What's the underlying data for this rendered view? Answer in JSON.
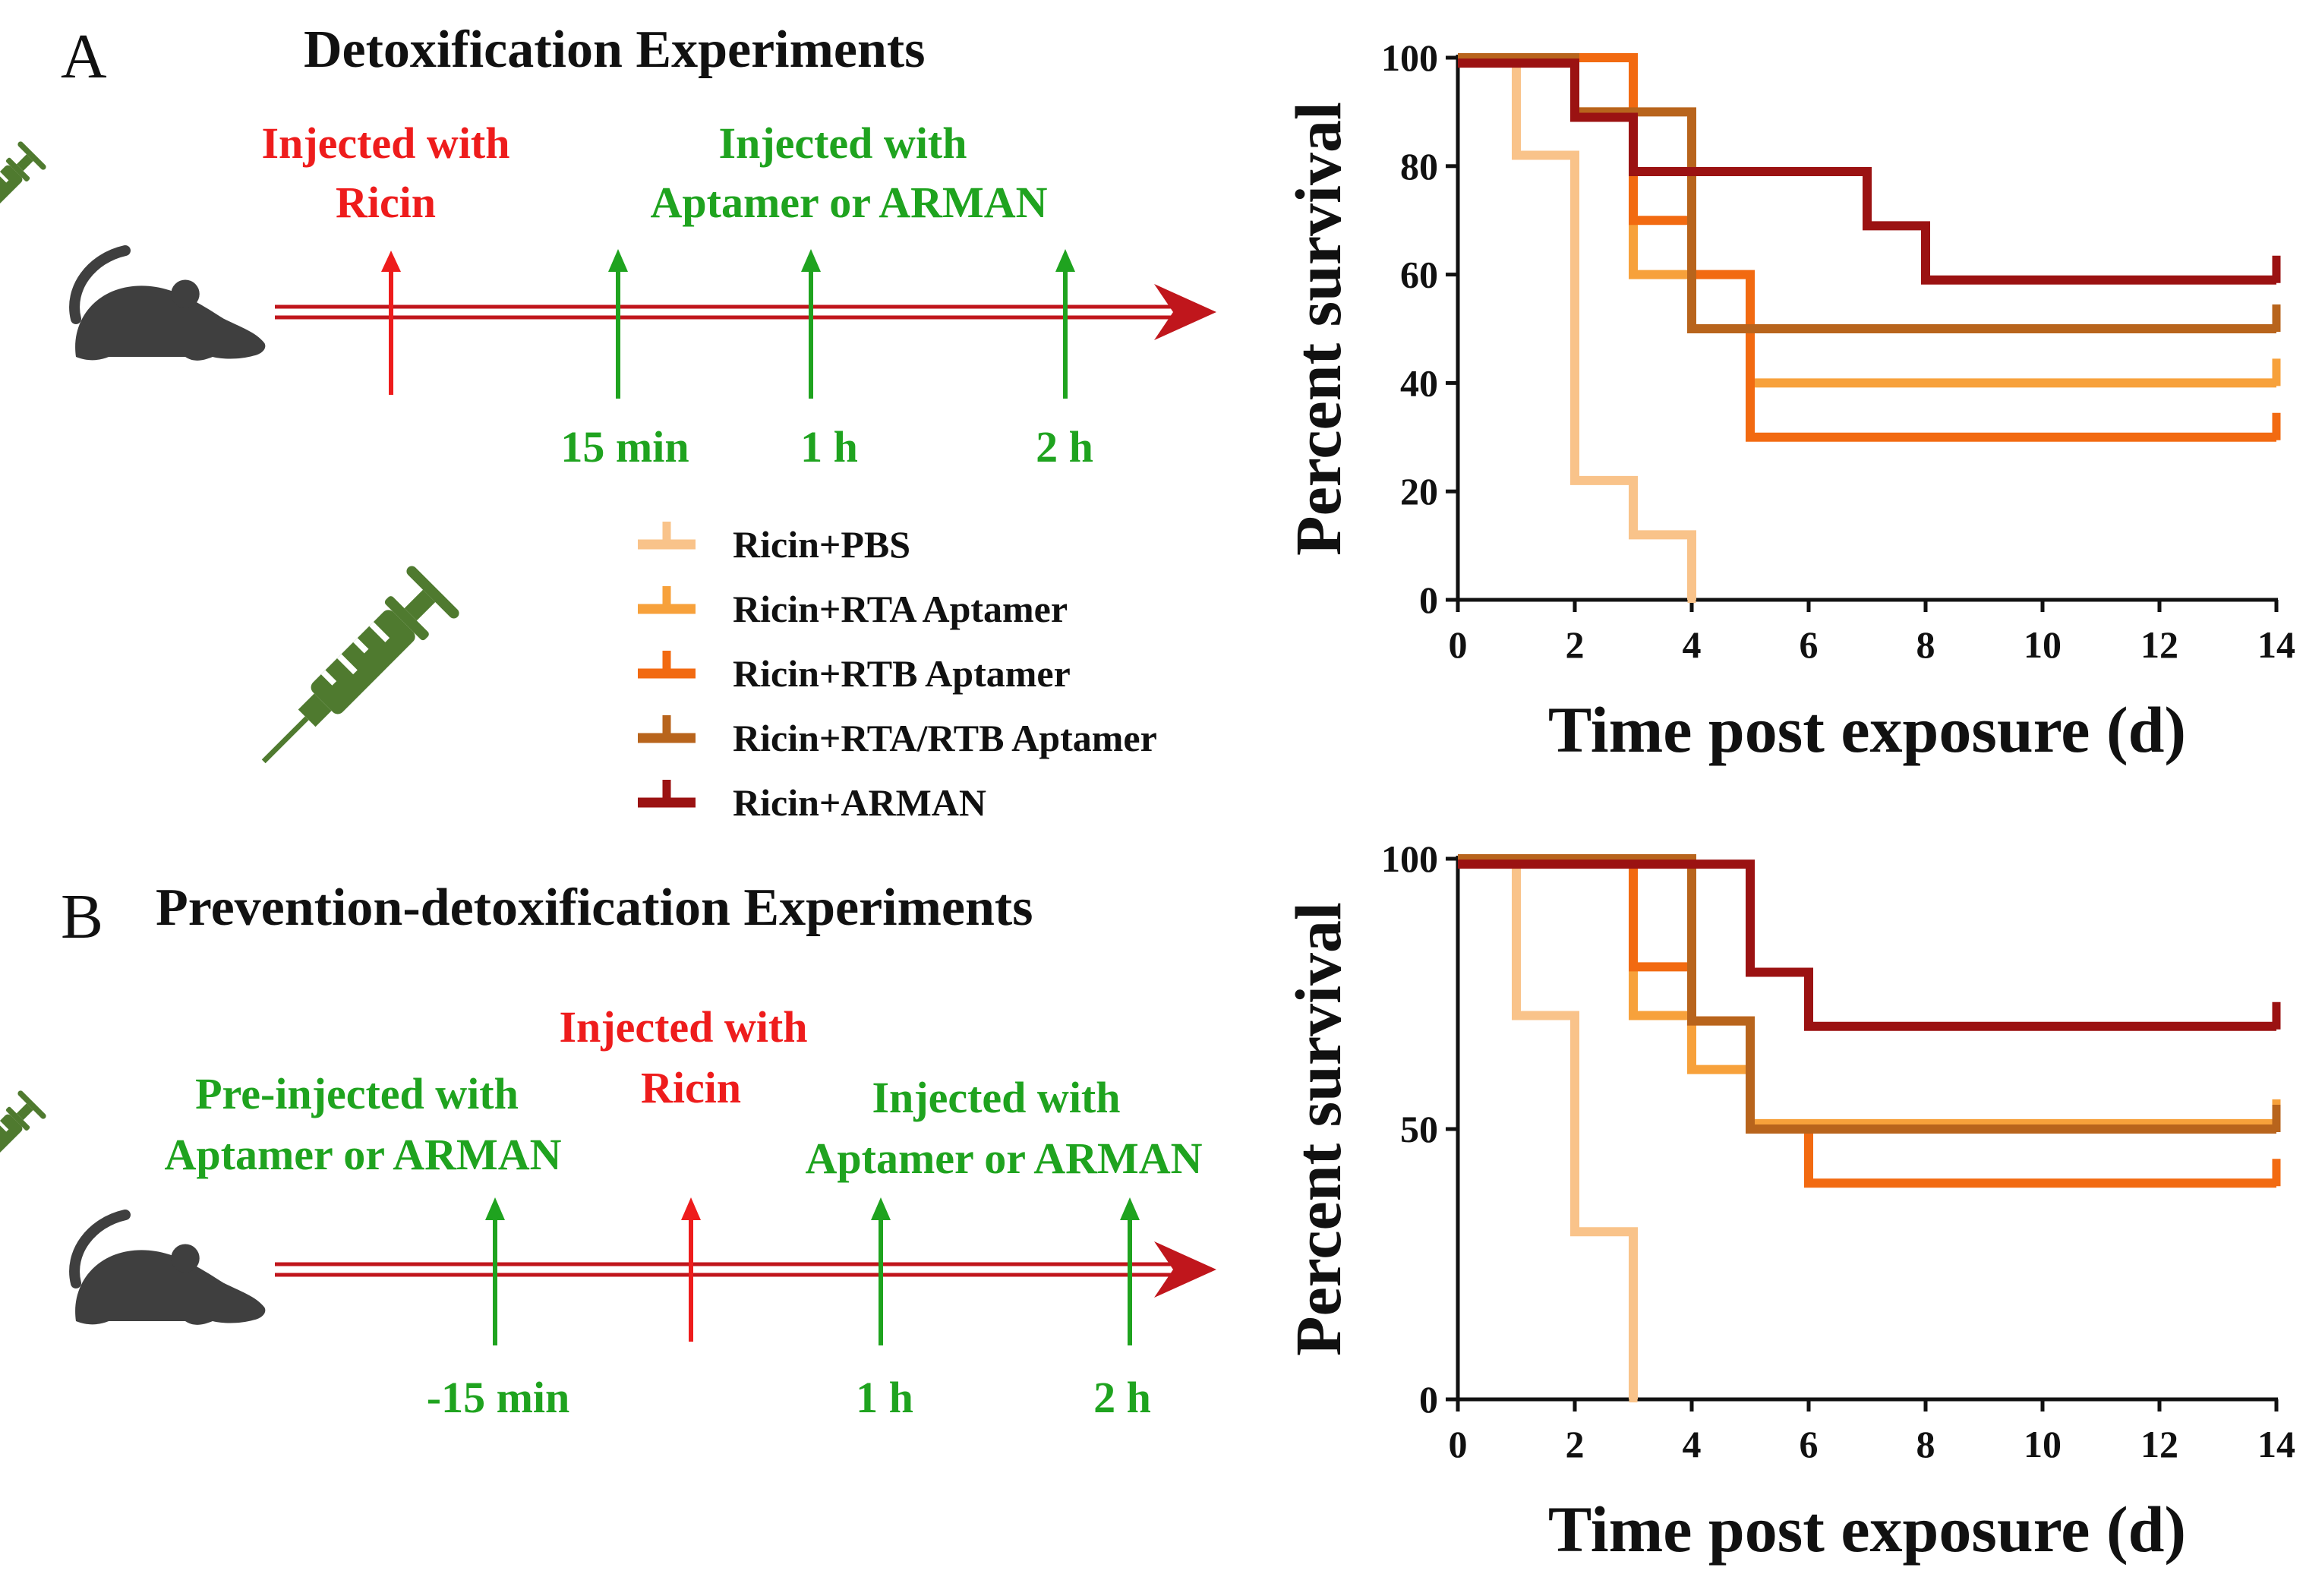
{
  "panels": {
    "a": {
      "letter": "A",
      "title": "Detoxification Experiments",
      "ricin_label": [
        "Injected with",
        "Ricin"
      ],
      "treatment_label": [
        "Injected with",
        "Aptamer or ARMAN"
      ],
      "times": [
        "15 min",
        "1 h",
        "2 h"
      ]
    },
    "b": {
      "letter": "B",
      "title": "Prevention-detoxification Experiments",
      "pre_label": [
        "Pre-injected with",
        "Aptamer or ARMAN"
      ],
      "ricin_label": [
        "Injected with",
        "Ricin"
      ],
      "treatment_label": [
        "Injected with",
        "Aptamer or ARMAN"
      ],
      "times": [
        "-15 min",
        "1 h",
        "2 h"
      ]
    }
  },
  "colors": {
    "ricin_red": "#ee1c1c",
    "injection_green": "#1fa31f",
    "timeline_red": "#c0161c",
    "syringe_green": "#4f7a2f",
    "mouse_gray": "#3f3f3f"
  },
  "legend": [
    {
      "label": "Ricin+PBS",
      "color": "#f9c38a"
    },
    {
      "label": "Ricin+RTA Aptamer",
      "color": "#f7a13b"
    },
    {
      "label": "Ricin+RTB Aptamer",
      "color": "#f26a11"
    },
    {
      "label": "Ricin+RTA/RTB Aptamer",
      "color": "#b8641c"
    },
    {
      "label": "Ricin+ARMAN",
      "color": "#9b1212"
    }
  ],
  "chart_data": [
    {
      "type": "line",
      "subtype": "kaplan-meier",
      "panel": "A",
      "xlabel": "Time post exposure (d)",
      "ylabel": "Percent survival",
      "xlim": [
        0,
        14
      ],
      "ylim": [
        0,
        100
      ],
      "xticks": [
        "0",
        "2",
        "4",
        "6",
        "8",
        "10",
        "12",
        "14"
      ],
      "yticks": [
        "0",
        "20",
        "40",
        "60",
        "80",
        "100"
      ],
      "series": [
        {
          "name": "Ricin+PBS",
          "color": "#f9c38a",
          "steps": [
            [
              0,
              100
            ],
            [
              1,
              82
            ],
            [
              2,
              22
            ],
            [
              3,
              12
            ],
            [
              4,
              0
            ]
          ],
          "end": 4
        },
        {
          "name": "Ricin+RTA Aptamer",
          "color": "#f7a13b",
          "steps": [
            [
              0,
              100
            ],
            [
              2,
              90
            ],
            [
              3,
              60
            ],
            [
              4,
              50
            ],
            [
              5,
              40
            ]
          ],
          "end": 14
        },
        {
          "name": "Ricin+RTB Aptamer",
          "color": "#f26a11",
          "steps": [
            [
              0,
              100
            ],
            [
              3,
              70
            ],
            [
              4,
              60
            ],
            [
              5,
              30
            ]
          ],
          "end": 14
        },
        {
          "name": "Ricin+RTA/RTB Aptamer",
          "color": "#b8641c",
          "steps": [
            [
              0,
              100
            ],
            [
              2,
              90
            ],
            [
              4,
              50
            ]
          ],
          "end": 14
        },
        {
          "name": "Ricin+ARMAN",
          "color": "#9b1212",
          "steps": [
            [
              0,
              99
            ],
            [
              2,
              89
            ],
            [
              3,
              79
            ],
            [
              7,
              69
            ],
            [
              8,
              59
            ]
          ],
          "end": 14
        }
      ]
    },
    {
      "type": "line",
      "subtype": "kaplan-meier",
      "panel": "B",
      "xlabel": "Time post exposure (d)",
      "ylabel": "Percent survival",
      "xlim": [
        0,
        14
      ],
      "ylim": [
        0,
        100
      ],
      "xticks": [
        "0",
        "2",
        "4",
        "6",
        "8",
        "10",
        "12",
        "14"
      ],
      "yticks": [
        "0",
        "50",
        "100"
      ],
      "series": [
        {
          "name": "Ricin+PBS",
          "color": "#f9c38a",
          "steps": [
            [
              0,
              100
            ],
            [
              1,
              71
            ],
            [
              2,
              31
            ],
            [
              3,
              0
            ]
          ],
          "end": 3
        },
        {
          "name": "Ricin+RTA Aptamer",
          "color": "#f7a13b",
          "steps": [
            [
              0,
              100
            ],
            [
              3,
              71
            ],
            [
              4,
              61
            ],
            [
              5,
              51
            ]
          ],
          "end": 14
        },
        {
          "name": "Ricin+RTB Aptamer",
          "color": "#f26a11",
          "steps": [
            [
              0,
              100
            ],
            [
              3,
              80
            ],
            [
              4,
              70
            ],
            [
              5,
              50
            ],
            [
              6,
              40
            ]
          ],
          "end": 14
        },
        {
          "name": "Ricin+RTA/RTB Aptamer",
          "color": "#b8641c",
          "steps": [
            [
              0,
              100
            ],
            [
              4,
              70
            ],
            [
              5,
              50
            ]
          ],
          "end": 14
        },
        {
          "name": "Ricin+ARMAN",
          "color": "#9b1212",
          "steps": [
            [
              0,
              99
            ],
            [
              5,
              79
            ],
            [
              6,
              69
            ]
          ],
          "end": 14
        }
      ]
    }
  ]
}
